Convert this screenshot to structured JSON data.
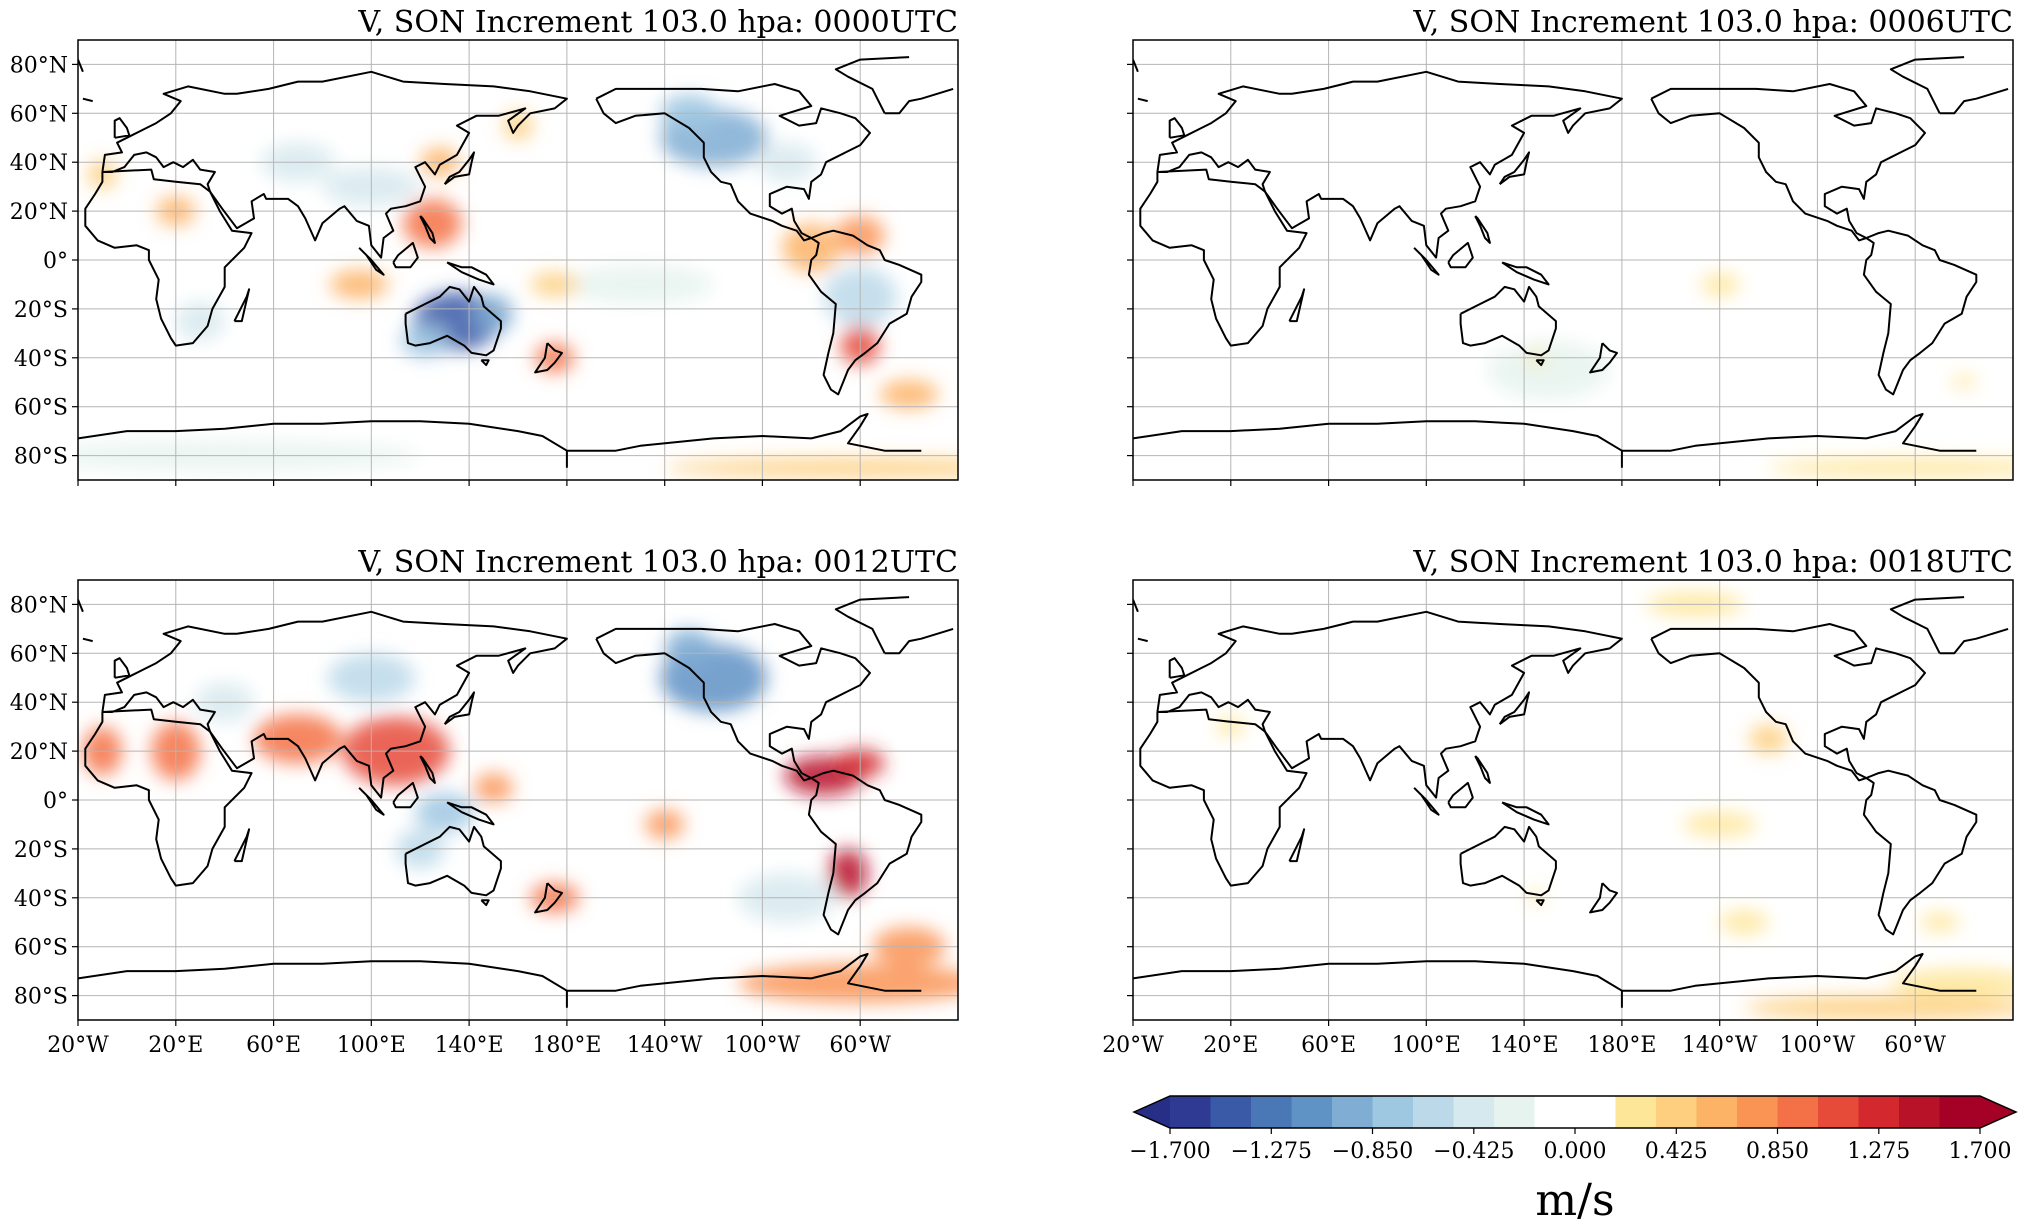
{
  "figure": {
    "panels": [
      {
        "title": "V, SON Increment 103.0 hpa: 0000UTC",
        "intensity": 1.0
      },
      {
        "title": "V, SON Increment 103.0 hpa: 0006UTC",
        "intensity": 0.45
      },
      {
        "title": "V, SON Increment 103.0 hpa: 0012UTC",
        "intensity": 1.1
      },
      {
        "title": "V, SON Increment 103.0 hpa: 0018UTC",
        "intensity": 0.5
      }
    ],
    "lat_ticks": [
      "80°N",
      "60°N",
      "40°N",
      "20°N",
      "0°",
      "20°S",
      "40°S",
      "60°S",
      "80°S"
    ],
    "lon_ticks": [
      "20°E",
      "60°E",
      "100°E",
      "140°E",
      "180°E",
      "140°W",
      "100°W",
      "60°W",
      "20°W"
    ],
    "colorbar": {
      "tick_labels": [
        "−1.700",
        "−1.275",
        "−0.850",
        "−0.425",
        "0.000",
        "0.425",
        "0.850",
        "1.275",
        "1.700"
      ],
      "unit": "m/s",
      "colors": [
        "#2f3a93",
        "#3a5aa8",
        "#4a77b6",
        "#5f92c5",
        "#7fadd3",
        "#9ec7e2",
        "#bcd9ea",
        "#d6e9ef",
        "#e6f3ee",
        "#ffffff",
        "#ffffff",
        "#fee699",
        "#fdcf7e",
        "#fdb366",
        "#fa9455",
        "#f47147",
        "#e64a38",
        "#d3282d",
        "#b81228",
        "#a50026"
      ]
    }
  }
}
